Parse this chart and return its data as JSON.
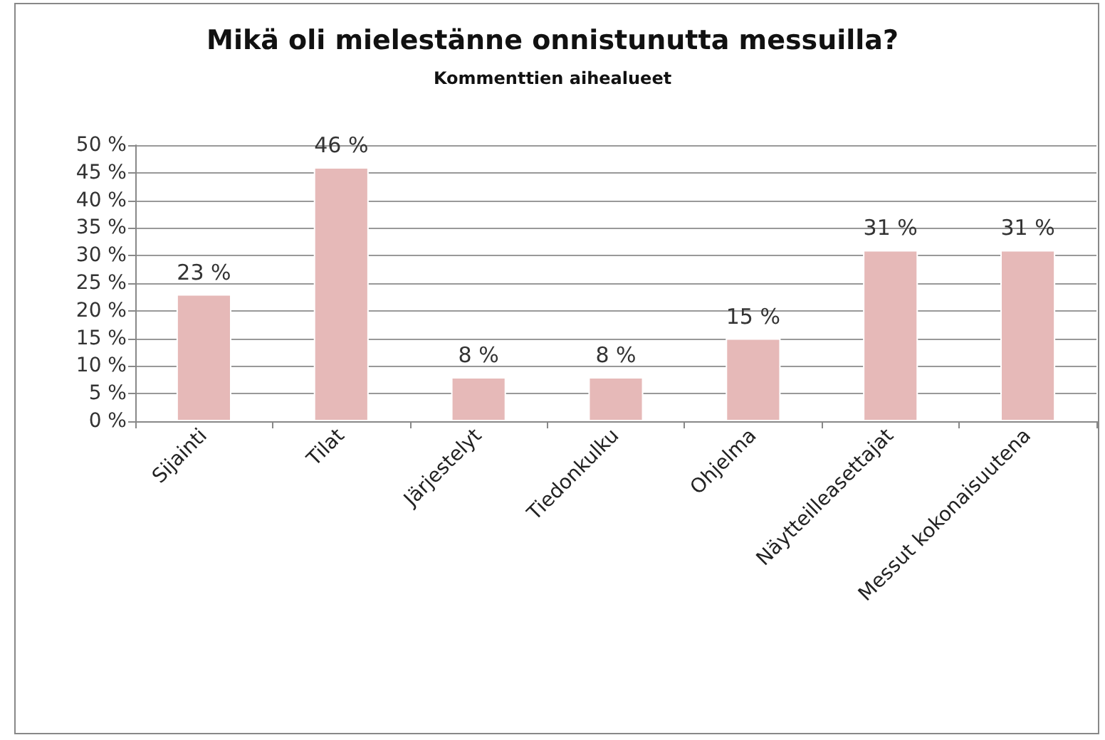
{
  "chart_data": {
    "type": "bar",
    "title": "Mikä oli mielestänne onnistunutta messuilla?",
    "subtitle": "Kommenttien aihealueet",
    "categories": [
      "Sijainti",
      "Tilat",
      "Järjestelyt",
      "Tiedonkulku",
      "Ohjelma",
      "Näytteilleasettajat",
      "Messut kokonaisuutena"
    ],
    "values": [
      23,
      46,
      8,
      8,
      15,
      31,
      31
    ],
    "color": "#e6b9b8",
    "value_labels": [
      "23 %",
      "46 %",
      "8 %",
      "8 %",
      "15 %",
      "31 %",
      "31 %"
    ],
    "ylim": [
      0,
      50
    ],
    "yticks": [
      {
        "value": 0,
        "label": "0 %"
      },
      {
        "value": 5,
        "label": "5 %"
      },
      {
        "value": 10,
        "label": "10 %"
      },
      {
        "value": 15,
        "label": "15 %"
      },
      {
        "value": 20,
        "label": "20 %"
      },
      {
        "value": 25,
        "label": "25 %"
      },
      {
        "value": 30,
        "label": "30 %"
      },
      {
        "value": 35,
        "label": "35 %"
      },
      {
        "value": 40,
        "label": "40 %"
      },
      {
        "value": 45,
        "label": "45 %"
      },
      {
        "value": 50,
        "label": "50 %"
      }
    ],
    "grid": "y"
  }
}
